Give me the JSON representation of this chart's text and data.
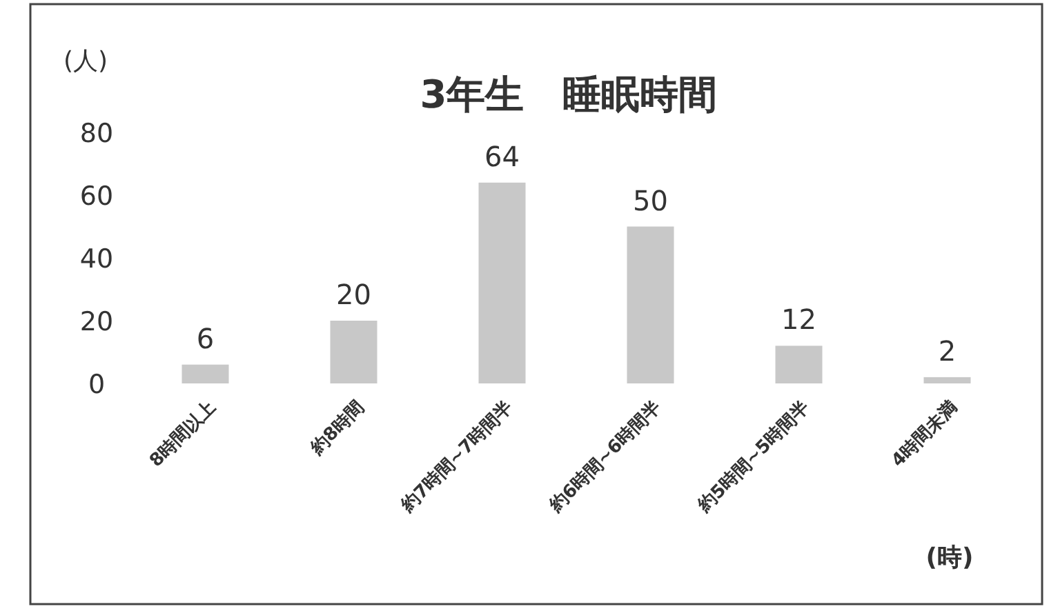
{
  "chart_data": {
    "type": "bar",
    "title": "3年生　睡眠時間",
    "ylabel": "(人)",
    "xlabel": "(時)",
    "categories": [
      "8時間以上",
      "約8時間",
      "約7時間~7時間半",
      "約6時間~6時間半",
      "約5時間~5時間半",
      "4時間未満"
    ],
    "values": [
      6,
      20,
      64,
      50,
      12,
      2
    ],
    "color": "#c8c8c8",
    "ylim": [
      0,
      80
    ],
    "yticks": [
      0,
      20,
      40,
      60,
      80
    ],
    "data_labels": true,
    "grid": false
  }
}
